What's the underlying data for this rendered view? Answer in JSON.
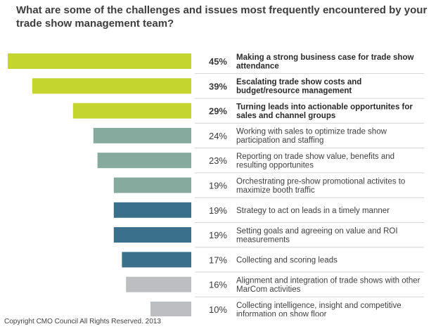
{
  "chart_data": {
    "type": "bar",
    "orientation": "horizontal",
    "title": "What are some of the challenges and issues most frequently encountered by your trade show management team?",
    "xlabel": "",
    "ylabel": "",
    "xlim": [
      0,
      45
    ],
    "grid": false,
    "legend": "none",
    "categories": [
      "Making a strong business case for trade show attendance",
      "Escalating trade show costs and budget/resource management",
      "Turning leads into actionable opportunites for sales and channel groups",
      "Working with sales to optimize trade show participation and staffing",
      "Reporting on trade show value, benefits and resulting opportunites",
      "Orchestrating pre-show promotional activites to maximize booth traffic",
      "Strategy to act on leads in a timely manner",
      "Setting goals and agreeing on value and ROI measurements",
      "Collecting and scoring leads",
      "Alignment and integration of trade shows with other MarCom activities",
      "Collecting intelligence, insight and competitive information on show floor"
    ],
    "value_labels": [
      "45%",
      "39%",
      "29%",
      "24%",
      "23%",
      "19%",
      "19%",
      "19%",
      "17%",
      "16%",
      "10%"
    ],
    "values": [
      45,
      39,
      29,
      24,
      23,
      19,
      19,
      19,
      17,
      16,
      10
    ],
    "colors": [
      "#c5d530",
      "#c5d530",
      "#c5d530",
      "#86ab9e",
      "#86ab9e",
      "#86ab9e",
      "#3a708b",
      "#3a708b",
      "#3a708b",
      "#bcbec1",
      "#bcbec1"
    ],
    "label_bold": [
      true,
      true,
      true,
      false,
      false,
      false,
      false,
      false,
      false,
      false,
      false
    ]
  },
  "footer": "Copyright CMO Council All Rights Reserved. 2013"
}
